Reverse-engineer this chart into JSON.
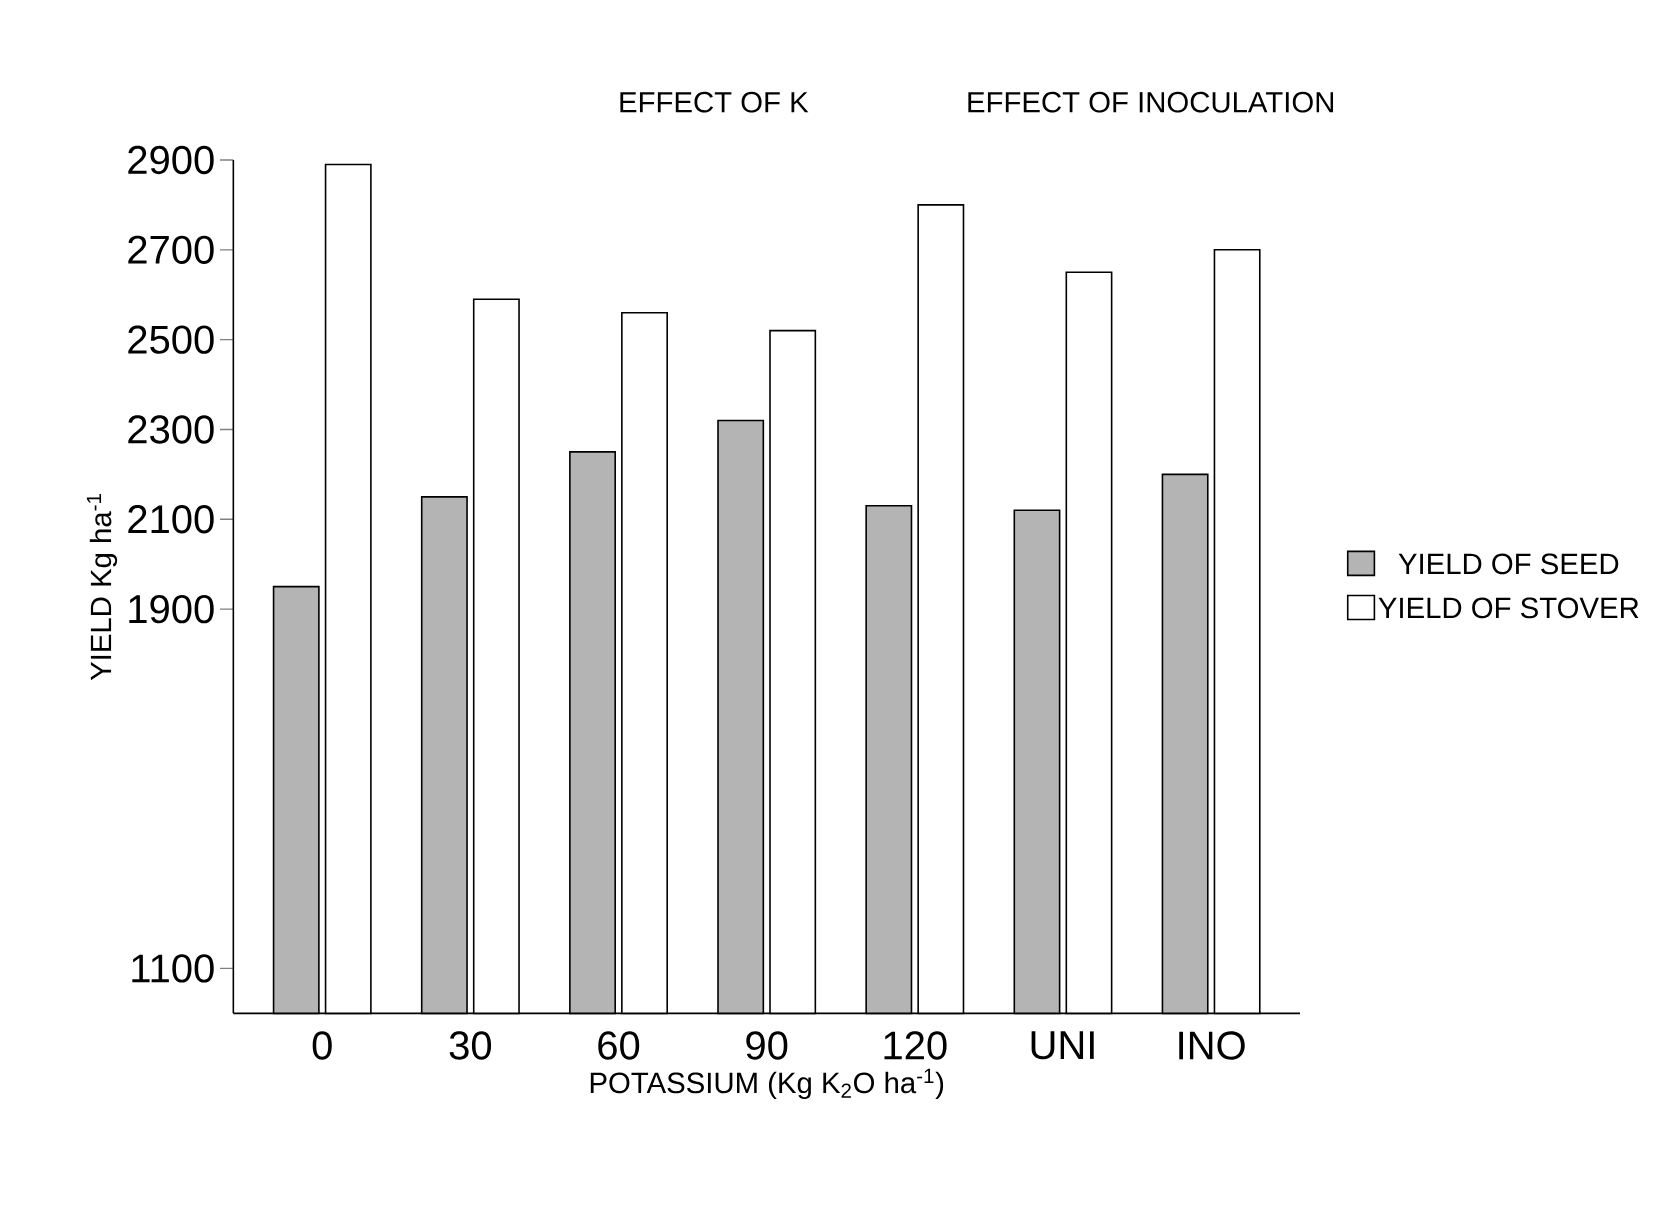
{
  "chart_data": {
    "type": "bar",
    "annotations": [
      "EFFECT OF K",
      "EFFECT OF INOCULATION"
    ],
    "xlabel": "POTASSIUM (Kg K$_{2}$O ha$^{-1}$)",
    "ylabel": "YIELD Kg ha$^{-1}$",
    "categories": [
      "0",
      "30",
      "60",
      "90",
      "120",
      "UNI",
      "INO"
    ],
    "series": [
      {
        "name": "YIELD OF SEED",
        "color": "#b4b4b4",
        "values": [
          1950,
          2150,
          2250,
          2320,
          2130,
          2120,
          2200
        ]
      },
      {
        "name": "YIELD OF STOVER",
        "color": "#ffffff",
        "values": [
          2890,
          2590,
          2560,
          2520,
          2800,
          2650,
          2700
        ]
      }
    ],
    "ylim": [
      1000,
      2900
    ],
    "yticks": [
      1100,
      1900,
      2100,
      2300,
      2500,
      2700,
      2900
    ],
    "legend": "right"
  }
}
